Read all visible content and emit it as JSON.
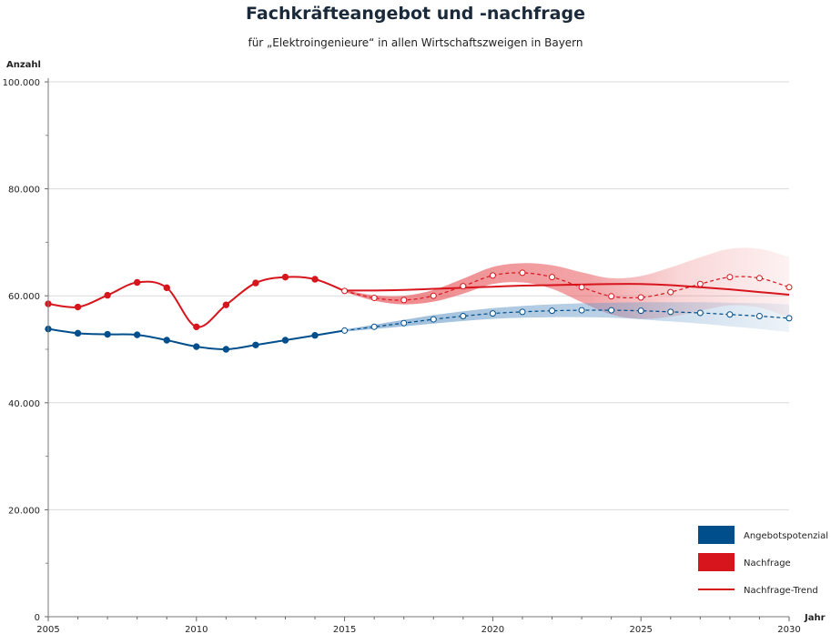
{
  "chart_data": {
    "type": "line",
    "title": "Fachkräfteangebot und -nachfrage",
    "subtitle": "für „Elektroingenieure“ in allen Wirtschaftszweigen in Bayern",
    "ylabel": "Anzahl",
    "xlabel": "Jahr",
    "ylim": [
      0,
      100000
    ],
    "xlim": [
      2005,
      2030
    ],
    "y_ticks": [
      0,
      20000,
      40000,
      60000,
      80000,
      100000
    ],
    "y_tick_labels": [
      "0",
      "20.000",
      "40.000",
      "60.000",
      "80.000",
      "100.000"
    ],
    "x_ticks": [
      2005,
      2010,
      2015,
      2020,
      2025,
      2030
    ],
    "x_tick_labels": [
      "2005",
      "2010",
      "2015",
      "2020",
      "2025",
      "2030"
    ],
    "grid": "horizontal",
    "legend_position": "bottom-right",
    "series": [
      {
        "name": "Angebotspotenzial",
        "color": "#004f8c",
        "band_color": "#8fb3d5",
        "x": [
          2005,
          2006,
          2007,
          2008,
          2009,
          2010,
          2011,
          2012,
          2013,
          2014,
          2015,
          2016,
          2017,
          2018,
          2019,
          2020,
          2021,
          2022,
          2023,
          2024,
          2025,
          2026,
          2027,
          2028,
          2029,
          2030
        ],
        "values": [
          53800,
          53000,
          52800,
          52700,
          51700,
          50500,
          50000,
          50800,
          51700,
          52600,
          53500,
          54200,
          54900,
          55600,
          56200,
          56700,
          57000,
          57200,
          57300,
          57300,
          57200,
          57000,
          56800,
          56500,
          56200,
          55800
        ],
        "historical_until": 2014,
        "band_width": [
          0,
          0,
          0,
          0,
          0,
          0,
          0,
          0,
          0,
          0,
          200,
          400,
          600,
          800,
          900,
          1000,
          1100,
          1200,
          1300,
          1400,
          1600,
          1800,
          2000,
          2200,
          2400,
          2600
        ]
      },
      {
        "name": "Nachfrage",
        "color": "#d7151d",
        "band_color": "#e85a5f",
        "x": [
          2005,
          2006,
          2007,
          2008,
          2009,
          2010,
          2011,
          2012,
          2013,
          2014,
          2015,
          2016,
          2017,
          2018,
          2019,
          2020,
          2021,
          2022,
          2023,
          2024,
          2025,
          2026,
          2027,
          2028,
          2029,
          2030
        ],
        "values": [
          58500,
          57900,
          60100,
          62500,
          61500,
          54200,
          58300,
          62400,
          63500,
          63100,
          60900,
          59600,
          59200,
          60000,
          61800,
          63800,
          64300,
          63500,
          61600,
          59900,
          59700,
          60700,
          62200,
          63500,
          63300,
          61600
        ],
        "historical_until": 2014,
        "band_width": [
          0,
          0,
          0,
          0,
          0,
          0,
          0,
          0,
          0,
          0,
          200,
          500,
          800,
          1100,
          1400,
          1600,
          1800,
          2200,
          2800,
          3400,
          4000,
          4600,
          5000,
          5300,
          5500,
          5700
        ]
      },
      {
        "name": "Nachfrage-Trend",
        "color": "#d7151d",
        "x": [
          2015,
          2016,
          2017,
          2018,
          2019,
          2020,
          2021,
          2022,
          2023,
          2024,
          2025,
          2026,
          2027,
          2028,
          2029,
          2030
        ],
        "values": [
          61000,
          61000,
          61100,
          61300,
          61500,
          61700,
          61900,
          62000,
          62100,
          62200,
          62200,
          62000,
          61600,
          61200,
          60700,
          60200
        ]
      }
    ]
  }
}
